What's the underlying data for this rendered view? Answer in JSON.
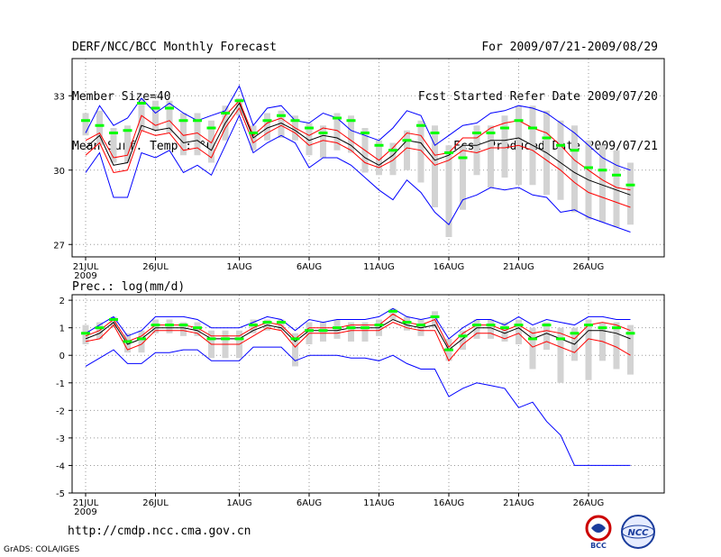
{
  "header": {
    "line1": "DERF/NCC/BCC Monthly Forecast",
    "line2": "Member Size=40",
    "line3": "Mean Surf. Temp.: °C",
    "right1": "For 2009/07/21-2009/08/29",
    "right2": "Fcst Started Refer Date 2009/07/20",
    "right3": "Fcst Produced Date 2009/07/21"
  },
  "footer": {
    "url": "http://cmdp.ncc.cma.gov.cn",
    "credit": "GrADS: COLA/IGES"
  },
  "logos": {
    "bcc": "BCC",
    "ncc": "NCC"
  },
  "colors": {
    "box": "#d3d3d3",
    "mean": "#00ff00",
    "env": "#0000ff",
    "mid": "#ff0000",
    "ens": "#000000",
    "grid": "#999999"
  },
  "chart_data": [
    {
      "type": "line",
      "title": "Mean Surf. Temp.: °C",
      "xlabels": [
        "21JUL",
        "26JUL",
        "1AUG",
        "6AUG",
        "11AUG",
        "16AUG",
        "21AUG",
        "26AUG"
      ],
      "xlabel_days": [
        0,
        5,
        11,
        16,
        21,
        26,
        31,
        36
      ],
      "year_label": "2009",
      "ylim": [
        26.5,
        34.5
      ],
      "yticks": [
        "27",
        "30",
        "33"
      ],
      "ytick_values": [
        27,
        30,
        33
      ],
      "days": 40,
      "series": [
        {
          "name": "max",
          "values": [
            31.5,
            32.6,
            31.8,
            32.1,
            32.9,
            32.3,
            32.7,
            32.3,
            32.0,
            32.2,
            32.4,
            33.4,
            31.8,
            32.5,
            32.6,
            32.0,
            31.9,
            32.3,
            32.1,
            31.6,
            31.4,
            31.2,
            31.7,
            32.4,
            32.2,
            31.0,
            31.4,
            31.8,
            31.9,
            32.3,
            32.4,
            32.6,
            32.5,
            32.3,
            31.9,
            31.5,
            31.0,
            30.5,
            30.2,
            30.0
          ]
        },
        {
          "name": "p90",
          "values": [
            31.2,
            31.5,
            30.5,
            30.6,
            32.2,
            31.8,
            32.0,
            31.4,
            31.5,
            31.1,
            32.2,
            32.8,
            31.4,
            31.9,
            32.1,
            31.7,
            31.4,
            31.7,
            31.6,
            31.2,
            30.8,
            30.4,
            30.9,
            31.5,
            31.4,
            30.6,
            30.7,
            31.3,
            31.3,
            31.7,
            31.9,
            32.0,
            31.7,
            31.5,
            31.0,
            30.4,
            30.0,
            29.6,
            29.3,
            29.2
          ]
        },
        {
          "name": "p50",
          "values": [
            30.9,
            31.4,
            30.2,
            30.3,
            31.8,
            31.6,
            31.7,
            31.1,
            31.2,
            30.8,
            31.9,
            32.7,
            31.3,
            31.7,
            31.9,
            31.6,
            31.2,
            31.4,
            31.3,
            31.0,
            30.5,
            30.2,
            30.6,
            31.2,
            31.1,
            30.4,
            30.6,
            31.0,
            31.0,
            31.2,
            31.2,
            31.3,
            31.0,
            30.7,
            30.3,
            29.9,
            29.6,
            29.4,
            29.2,
            29.0
          ]
        },
        {
          "name": "p10",
          "values": [
            30.6,
            31.1,
            29.9,
            30.0,
            31.6,
            31.4,
            31.5,
            30.8,
            30.9,
            30.5,
            31.7,
            32.5,
            31.1,
            31.5,
            31.8,
            31.5,
            31.0,
            31.2,
            31.1,
            30.8,
            30.3,
            30.1,
            30.4,
            30.9,
            30.8,
            30.2,
            30.4,
            30.8,
            30.7,
            30.9,
            30.9,
            31.0,
            30.8,
            30.4,
            30.0,
            29.5,
            29.1,
            28.9,
            28.7,
            28.5
          ]
        },
        {
          "name": "min",
          "values": [
            29.9,
            30.7,
            28.9,
            28.9,
            30.7,
            30.5,
            30.8,
            29.9,
            30.2,
            29.8,
            31.0,
            32.2,
            30.7,
            31.1,
            31.4,
            31.1,
            30.1,
            30.5,
            30.5,
            30.2,
            29.7,
            29.2,
            28.8,
            29.6,
            29.1,
            28.3,
            27.8,
            28.8,
            29.0,
            29.3,
            29.2,
            29.3,
            29.0,
            28.9,
            28.3,
            28.4,
            28.1,
            27.9,
            27.7,
            27.5
          ]
        },
        {
          "name": "mean",
          "values": [
            32.0,
            31.8,
            31.5,
            31.6,
            32.7,
            32.5,
            32.5,
            32.0,
            32.0,
            31.7,
            32.3,
            32.8,
            31.5,
            32.0,
            32.2,
            32.0,
            31.7,
            31.5,
            32.1,
            32.0,
            31.5,
            31.0,
            30.8,
            31.2,
            31.8,
            31.5,
            30.7,
            30.5,
            31.5,
            31.5,
            31.7,
            32.0,
            31.7,
            31.3,
            31.0,
            30.8,
            30.1,
            30.0,
            29.8,
            29.4
          ]
        },
        {
          "name": "box_high",
          "values": [
            32.3,
            32.4,
            31.7,
            31.8,
            32.9,
            32.8,
            32.8,
            32.3,
            32.3,
            32.0,
            32.6,
            32.9,
            31.8,
            32.3,
            32.4,
            32.2,
            31.9,
            31.8,
            32.3,
            32.2,
            31.7,
            31.2,
            31.1,
            31.6,
            32.0,
            31.8,
            31.0,
            31.0,
            31.8,
            31.8,
            32.2,
            32.6,
            32.6,
            32.4,
            32.0,
            31.8,
            31.2,
            31.0,
            30.8,
            30.3
          ]
        },
        {
          "name": "box_low",
          "values": [
            31.4,
            31.0,
            30.3,
            30.3,
            31.6,
            31.6,
            31.5,
            30.6,
            30.6,
            30.3,
            31.2,
            32.2,
            30.8,
            31.2,
            31.3,
            31.2,
            30.6,
            30.5,
            30.8,
            30.7,
            29.9,
            29.8,
            29.8,
            30.0,
            29.5,
            28.5,
            27.3,
            28.4,
            29.8,
            29.3,
            29.7,
            29.4,
            29.4,
            29.0,
            28.8,
            28.3,
            28.0,
            27.9,
            27.7,
            27.8
          ]
        }
      ]
    },
    {
      "type": "line",
      "title": "Prec.: log(mm/d)",
      "xlabels": [
        "21JUL",
        "26JUL",
        "1AUG",
        "6AUG",
        "11AUG",
        "16AUG",
        "21AUG",
        "26AUG"
      ],
      "xlabel_days": [
        0,
        5,
        11,
        16,
        21,
        26,
        31,
        36
      ],
      "year_label": "2009",
      "ylim": [
        -5,
        2.2
      ],
      "yticks": [
        "2",
        "1",
        "0",
        "-1",
        "-2",
        "-3",
        "-4",
        "-5"
      ],
      "ytick_values": [
        2,
        1,
        0,
        -1,
        -2,
        -3,
        -4,
        -5
      ],
      "days": 40,
      "series": [
        {
          "name": "max",
          "values": [
            0.8,
            1.1,
            1.4,
            0.7,
            0.9,
            1.4,
            1.4,
            1.4,
            1.3,
            1.0,
            1.0,
            1.0,
            1.2,
            1.4,
            1.3,
            0.9,
            1.3,
            1.2,
            1.3,
            1.3,
            1.3,
            1.4,
            1.7,
            1.4,
            1.3,
            1.4,
            0.6,
            1.0,
            1.3,
            1.3,
            1.1,
            1.4,
            1.1,
            1.3,
            1.2,
            1.1,
            1.4,
            1.4,
            1.3,
            1.3
          ]
        },
        {
          "name": "p90",
          "values": [
            0.7,
            0.9,
            1.3,
            0.5,
            0.7,
            1.1,
            1.1,
            1.1,
            1.0,
            0.7,
            0.7,
            0.7,
            1.0,
            1.2,
            1.1,
            0.6,
            1.0,
            1.0,
            1.0,
            1.1,
            1.1,
            1.1,
            1.5,
            1.2,
            1.1,
            1.3,
            0.3,
            0.8,
            1.1,
            1.1,
            0.9,
            1.1,
            0.8,
            0.9,
            0.8,
            0.6,
            1.1,
            1.2,
            1.1,
            0.9
          ]
        },
        {
          "name": "p50",
          "values": [
            0.6,
            0.8,
            1.2,
            0.4,
            0.6,
            1.0,
            1.0,
            1.0,
            0.9,
            0.6,
            0.6,
            0.6,
            0.9,
            1.1,
            1.0,
            0.5,
            0.9,
            0.9,
            0.9,
            1.0,
            1.0,
            1.0,
            1.3,
            1.1,
            1.0,
            1.1,
            0.2,
            0.6,
            1.0,
            1.0,
            0.8,
            1.0,
            0.6,
            0.8,
            0.6,
            0.4,
            0.9,
            0.9,
            0.8,
            0.6
          ]
        },
        {
          "name": "p10",
          "values": [
            0.5,
            0.6,
            1.1,
            0.2,
            0.4,
            0.9,
            0.9,
            0.9,
            0.8,
            0.4,
            0.4,
            0.4,
            0.7,
            1.0,
            0.9,
            0.3,
            0.8,
            0.8,
            0.8,
            0.9,
            0.9,
            0.9,
            1.2,
            1.0,
            0.9,
            0.9,
            -0.2,
            0.4,
            0.8,
            0.8,
            0.6,
            0.8,
            0.3,
            0.5,
            0.3,
            0.1,
            0.6,
            0.5,
            0.3,
            0.0
          ]
        },
        {
          "name": "min",
          "values": [
            -0.4,
            -0.1,
            0.2,
            -0.3,
            -0.3,
            0.1,
            0.1,
            0.2,
            0.2,
            -0.2,
            -0.2,
            -0.2,
            0.3,
            0.3,
            0.3,
            -0.2,
            0.0,
            0.0,
            0.0,
            -0.1,
            -0.1,
            -0.2,
            0.0,
            -0.3,
            -0.5,
            -0.5,
            -1.5,
            -1.2,
            -1.0,
            -1.1,
            -1.2,
            -1.9,
            -1.7,
            -2.4,
            -2.9,
            -4.0,
            -4.0,
            -4.0,
            -4.0,
            -4.0
          ]
        },
        {
          "name": "mean",
          "values": [
            0.8,
            1.0,
            1.3,
            0.5,
            0.6,
            1.1,
            1.1,
            1.1,
            1.0,
            0.6,
            0.6,
            0.6,
            1.1,
            1.2,
            1.2,
            0.6,
            0.9,
            0.9,
            1.0,
            1.0,
            1.0,
            1.1,
            1.6,
            1.2,
            1.1,
            1.4,
            0.2,
            0.7,
            1.1,
            1.1,
            1.0,
            1.1,
            0.6,
            1.1,
            0.6,
            0.8,
            1.1,
            1.0,
            1.0,
            0.8
          ]
        },
        {
          "name": "box_high",
          "values": [
            1.1,
            1.2,
            1.4,
            0.8,
            0.9,
            1.3,
            1.3,
            1.2,
            1.2,
            0.9,
            0.9,
            0.9,
            1.3,
            1.3,
            1.3,
            0.8,
            1.2,
            1.2,
            1.3,
            1.2,
            1.2,
            1.3,
            1.7,
            1.4,
            1.3,
            1.6,
            0.6,
            0.9,
            1.3,
            1.3,
            1.2,
            1.3,
            1.0,
            1.2,
            1.0,
            1.0,
            1.3,
            1.2,
            1.2,
            1.1
          ]
        },
        {
          "name": "box_low",
          "values": [
            0.4,
            0.6,
            1.0,
            0.1,
            0.1,
            0.8,
            0.8,
            0.7,
            0.7,
            -0.1,
            -0.1,
            -0.1,
            0.8,
            0.9,
            0.9,
            -0.4,
            0.4,
            0.5,
            0.6,
            0.5,
            0.5,
            0.7,
            1.3,
            0.9,
            0.7,
            1.0,
            -0.2,
            0.2,
            0.6,
            0.6,
            0.5,
            0.4,
            -0.5,
            0.2,
            -1.0,
            -0.2,
            -0.9,
            -0.2,
            -0.5,
            -0.7
          ]
        }
      ]
    }
  ]
}
